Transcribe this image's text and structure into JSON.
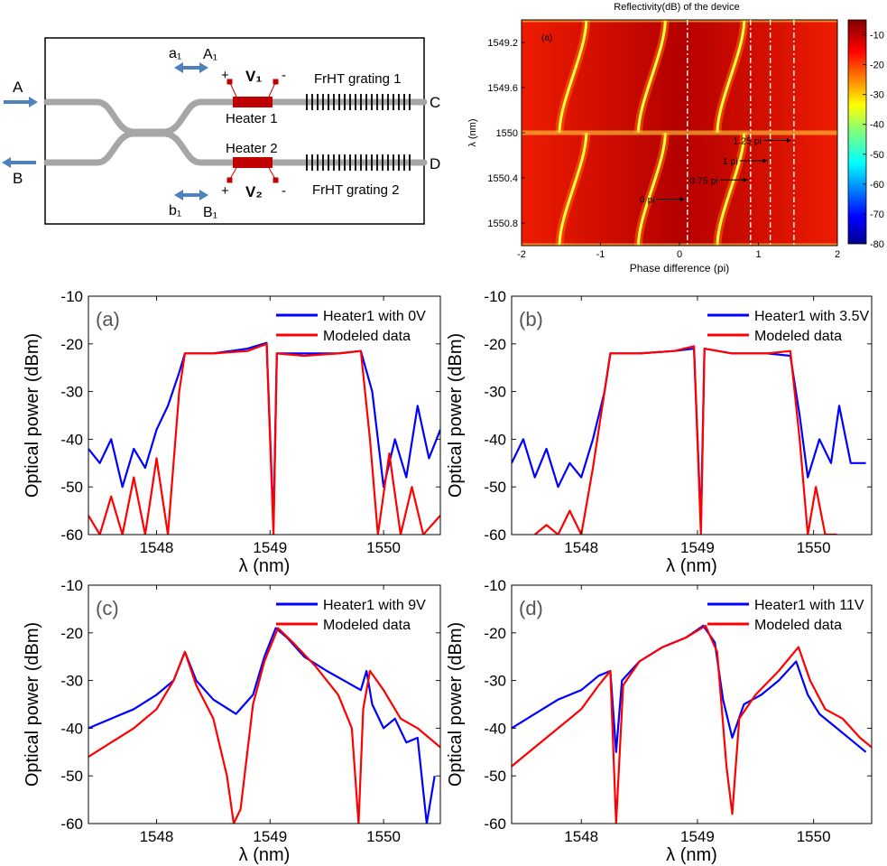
{
  "diagram": {
    "port_a": "A",
    "port_b": "B",
    "port_c": "C",
    "port_d": "D",
    "label_a1_small": "a₁",
    "label_a1_cap": "A₁",
    "label_b1_small": "b₁",
    "label_b1_cap": "B₁",
    "v1": "V₁",
    "v2": "V₂",
    "heater1": "Heater 1",
    "heater2": "Heater 2",
    "grating1": "FrHT grating 1",
    "grating2": "FrHT grating 2",
    "plus": "+",
    "minus": "-",
    "colors": {
      "waveguide": "#a6a6a6",
      "heater": "#c00000",
      "arrow": "#4f81bd"
    }
  },
  "chart_data": [
    {
      "type": "heatmap",
      "title": "Reflectivity(dB) of the device",
      "panel_label": "(a)",
      "xlabel": "Phase difference (pi)",
      "ylabel": "λ (nm)",
      "xlim": [
        -2,
        2
      ],
      "ylim": [
        1549.0,
        1551.0
      ],
      "xticks": [
        "-2",
        "-1",
        "0",
        "1",
        "2"
      ],
      "yticks": [
        "1549.2",
        "1549.6",
        "1550",
        "1550.4",
        "1550.8"
      ],
      "colorbar": {
        "min": -80,
        "max": -5,
        "ticks": [
          "-10",
          "-20",
          "-30",
          "-40",
          "-50",
          "-60",
          "-70",
          "-80"
        ]
      },
      "dashed_lines_x": [
        0.1,
        0.9,
        1.15,
        1.45
      ],
      "annotations": [
        {
          "text": "1.25 pi",
          "x": 1.45,
          "y": 1550.1
        },
        {
          "text": "1 pi",
          "x": 1.15,
          "y": 1550.28
        },
        {
          "text": "0.75 pi",
          "x": 0.9,
          "y": 1550.45
        },
        {
          "text": "0 pi",
          "x": 0.1,
          "y": 1550.62
        }
      ]
    },
    {
      "type": "line",
      "panel_label": "(a)",
      "xlabel": "λ (nm)",
      "ylabel": "Optical power (dBm)",
      "xlim": [
        1547.4,
        1550.5
      ],
      "ylim": [
        -60,
        -10
      ],
      "xticks": [
        1548,
        1549,
        1550
      ],
      "yticks": [
        -10,
        -20,
        -30,
        -40,
        -50,
        -60
      ],
      "series": [
        {
          "name": "Heater1 with 0V",
          "color": "#0000ff",
          "points": [
            [
              1547.4,
              -42
            ],
            [
              1547.5,
              -45
            ],
            [
              1547.6,
              -40
            ],
            [
              1547.7,
              -50
            ],
            [
              1547.8,
              -42
            ],
            [
              1547.9,
              -46
            ],
            [
              1548.0,
              -38
            ],
            [
              1548.1,
              -33
            ],
            [
              1548.2,
              -26
            ],
            [
              1548.25,
              -22
            ],
            [
              1548.5,
              -22
            ],
            [
              1548.8,
              -21
            ],
            [
              1548.97,
              -19.8
            ],
            [
              1549.03,
              -58
            ],
            [
              1549.06,
              -22
            ],
            [
              1549.3,
              -22
            ],
            [
              1549.6,
              -22
            ],
            [
              1549.8,
              -21.5
            ],
            [
              1549.9,
              -30
            ],
            [
              1550.0,
              -50
            ],
            [
              1550.1,
              -40
            ],
            [
              1550.2,
              -48
            ],
            [
              1550.3,
              -33
            ],
            [
              1550.4,
              -44
            ],
            [
              1550.5,
              -38
            ]
          ]
        },
        {
          "name": "Modeled data",
          "color": "#ff0000",
          "points": [
            [
              1547.4,
              -56
            ],
            [
              1547.5,
              -60
            ],
            [
              1547.6,
              -52
            ],
            [
              1547.7,
              -60
            ],
            [
              1547.8,
              -48
            ],
            [
              1547.9,
              -60
            ],
            [
              1548.0,
              -44
            ],
            [
              1548.1,
              -60
            ],
            [
              1548.2,
              -30
            ],
            [
              1548.25,
              -22
            ],
            [
              1548.5,
              -22
            ],
            [
              1548.8,
              -21.5
            ],
            [
              1548.97,
              -20
            ],
            [
              1549.03,
              -60
            ],
            [
              1549.06,
              -22
            ],
            [
              1549.3,
              -22.5
            ],
            [
              1549.6,
              -22
            ],
            [
              1549.8,
              -21.5
            ],
            [
              1549.88,
              -40
            ],
            [
              1549.95,
              -60
            ],
            [
              1550.05,
              -43
            ],
            [
              1550.15,
              -60
            ],
            [
              1550.25,
              -50
            ],
            [
              1550.35,
              -60
            ],
            [
              1550.5,
              -56
            ]
          ]
        }
      ]
    },
    {
      "type": "line",
      "panel_label": "(b)",
      "xlabel": "λ (nm)",
      "ylabel": "Optical power (dBm)",
      "xlim": [
        1547.4,
        1550.5
      ],
      "ylim": [
        -60,
        -10
      ],
      "xticks": [
        1548,
        1549,
        1550
      ],
      "yticks": [
        -10,
        -20,
        -30,
        -40,
        -50,
        -60
      ],
      "series": [
        {
          "name": "Heater1 with 3.5V",
          "color": "#0000ff",
          "points": [
            [
              1547.4,
              -45
            ],
            [
              1547.5,
              -40
            ],
            [
              1547.6,
              -48
            ],
            [
              1547.7,
              -42
            ],
            [
              1547.8,
              -50
            ],
            [
              1547.9,
              -45
            ],
            [
              1548.0,
              -48
            ],
            [
              1548.1,
              -40
            ],
            [
              1548.2,
              -30
            ],
            [
              1548.25,
              -22
            ],
            [
              1548.5,
              -22
            ],
            [
              1548.8,
              -21.5
            ],
            [
              1548.97,
              -21
            ],
            [
              1549.03,
              -58
            ],
            [
              1549.06,
              -21
            ],
            [
              1549.3,
              -22
            ],
            [
              1549.6,
              -22
            ],
            [
              1549.8,
              -22.5
            ],
            [
              1549.88,
              -35
            ],
            [
              1549.95,
              -48
            ],
            [
              1550.05,
              -40
            ],
            [
              1550.15,
              -45
            ],
            [
              1550.22,
              -33
            ],
            [
              1550.32,
              -45
            ],
            [
              1550.45,
              -45
            ]
          ]
        },
        {
          "name": "Modeled data",
          "color": "#ff0000",
          "points": [
            [
              1547.6,
              -60
            ],
            [
              1547.7,
              -58
            ],
            [
              1547.8,
              -60
            ],
            [
              1547.9,
              -55
            ],
            [
              1548.0,
              -60
            ],
            [
              1548.1,
              -46
            ],
            [
              1548.2,
              -30
            ],
            [
              1548.25,
              -22
            ],
            [
              1548.5,
              -22
            ],
            [
              1548.8,
              -21.5
            ],
            [
              1548.97,
              -20.5
            ],
            [
              1549.03,
              -60
            ],
            [
              1549.06,
              -21
            ],
            [
              1549.3,
              -22
            ],
            [
              1549.6,
              -22
            ],
            [
              1549.8,
              -21.5
            ],
            [
              1549.88,
              -40
            ],
            [
              1549.95,
              -60
            ],
            [
              1550.02,
              -50
            ],
            [
              1550.1,
              -60
            ],
            [
              1550.2,
              -60
            ]
          ]
        }
      ]
    },
    {
      "type": "line",
      "panel_label": "(c)",
      "xlabel": "λ (nm)",
      "ylabel": "Optical power (dBm)",
      "xlim": [
        1547.4,
        1550.5
      ],
      "ylim": [
        -60,
        -10
      ],
      "xticks": [
        1548,
        1549,
        1550
      ],
      "yticks": [
        -10,
        -20,
        -30,
        -40,
        -50,
        -60
      ],
      "series": [
        {
          "name": "Heater1 with 9V",
          "color": "#0000ff",
          "points": [
            [
              1547.4,
              -40
            ],
            [
              1547.6,
              -38
            ],
            [
              1547.8,
              -36
            ],
            [
              1548.0,
              -33
            ],
            [
              1548.15,
              -30
            ],
            [
              1548.25,
              -24
            ],
            [
              1548.35,
              -30
            ],
            [
              1548.5,
              -34
            ],
            [
              1548.7,
              -37
            ],
            [
              1548.85,
              -33
            ],
            [
              1548.95,
              -25
            ],
            [
              1549.05,
              -19
            ],
            [
              1549.15,
              -21
            ],
            [
              1549.3,
              -25
            ],
            [
              1549.5,
              -28
            ],
            [
              1549.65,
              -30
            ],
            [
              1549.8,
              -32
            ],
            [
              1549.85,
              -28
            ],
            [
              1549.9,
              -35
            ],
            [
              1550.0,
              -40
            ],
            [
              1550.1,
              -38
            ],
            [
              1550.2,
              -43
            ],
            [
              1550.3,
              -42
            ],
            [
              1550.38,
              -60
            ],
            [
              1550.45,
              -50
            ]
          ]
        },
        {
          "name": "Modeled data",
          "color": "#ff0000",
          "points": [
            [
              1547.4,
              -46
            ],
            [
              1547.6,
              -43
            ],
            [
              1547.8,
              -40
            ],
            [
              1548.0,
              -36
            ],
            [
              1548.15,
              -30
            ],
            [
              1548.25,
              -24
            ],
            [
              1548.35,
              -31
            ],
            [
              1548.5,
              -38
            ],
            [
              1548.62,
              -50
            ],
            [
              1548.68,
              -60
            ],
            [
              1548.74,
              -57
            ],
            [
              1548.85,
              -35
            ],
            [
              1548.95,
              -26
            ],
            [
              1549.07,
              -19
            ],
            [
              1549.2,
              -22
            ],
            [
              1549.4,
              -27
            ],
            [
              1549.6,
              -33
            ],
            [
              1549.72,
              -40
            ],
            [
              1549.78,
              -60
            ],
            [
              1549.82,
              -36
            ],
            [
              1549.88,
              -28
            ],
            [
              1550.0,
              -32
            ],
            [
              1550.15,
              -38
            ],
            [
              1550.3,
              -40
            ],
            [
              1550.5,
              -44
            ]
          ]
        }
      ]
    },
    {
      "type": "line",
      "panel_label": "(d)",
      "xlabel": "λ (nm)",
      "ylabel": "Optical power (dBm)",
      "xlim": [
        1547.4,
        1550.5
      ],
      "ylim": [
        -60,
        -10
      ],
      "xticks": [
        1548,
        1549,
        1550
      ],
      "yticks": [
        -10,
        -20,
        -30,
        -40,
        -50,
        -60
      ],
      "series": [
        {
          "name": "Heater1 with 11V",
          "color": "#0000ff",
          "points": [
            [
              1547.4,
              -40
            ],
            [
              1547.6,
              -37
            ],
            [
              1547.8,
              -34
            ],
            [
              1548.0,
              -32
            ],
            [
              1548.15,
              -29
            ],
            [
              1548.25,
              -28
            ],
            [
              1548.3,
              -45
            ],
            [
              1548.35,
              -30
            ],
            [
              1548.5,
              -26
            ],
            [
              1548.7,
              -23
            ],
            [
              1548.9,
              -21
            ],
            [
              1549.05,
              -18.5
            ],
            [
              1549.15,
              -22
            ],
            [
              1549.22,
              -34
            ],
            [
              1549.3,
              -42
            ],
            [
              1549.4,
              -35
            ],
            [
              1549.55,
              -33
            ],
            [
              1549.7,
              -30
            ],
            [
              1549.85,
              -26
            ],
            [
              1549.95,
              -33
            ],
            [
              1550.05,
              -37
            ],
            [
              1550.2,
              -40
            ],
            [
              1550.35,
              -43
            ],
            [
              1550.45,
              -45
            ]
          ]
        },
        {
          "name": "Modeled data",
          "color": "#ff0000",
          "points": [
            [
              1547.4,
              -48
            ],
            [
              1547.6,
              -44
            ],
            [
              1547.8,
              -40
            ],
            [
              1548.0,
              -36
            ],
            [
              1548.15,
              -31
            ],
            [
              1548.25,
              -28
            ],
            [
              1548.3,
              -60
            ],
            [
              1548.36,
              -31
            ],
            [
              1548.5,
              -26
            ],
            [
              1548.7,
              -23
            ],
            [
              1548.9,
              -21
            ],
            [
              1549.07,
              -18.5
            ],
            [
              1549.17,
              -24
            ],
            [
              1549.25,
              -48
            ],
            [
              1549.3,
              -58
            ],
            [
              1549.36,
              -38
            ],
            [
              1549.5,
              -33
            ],
            [
              1549.7,
              -28
            ],
            [
              1549.87,
              -23
            ],
            [
              1549.97,
              -30
            ],
            [
              1550.1,
              -36
            ],
            [
              1550.25,
              -38
            ],
            [
              1550.4,
              -42
            ],
            [
              1550.5,
              -44
            ]
          ]
        }
      ]
    }
  ]
}
